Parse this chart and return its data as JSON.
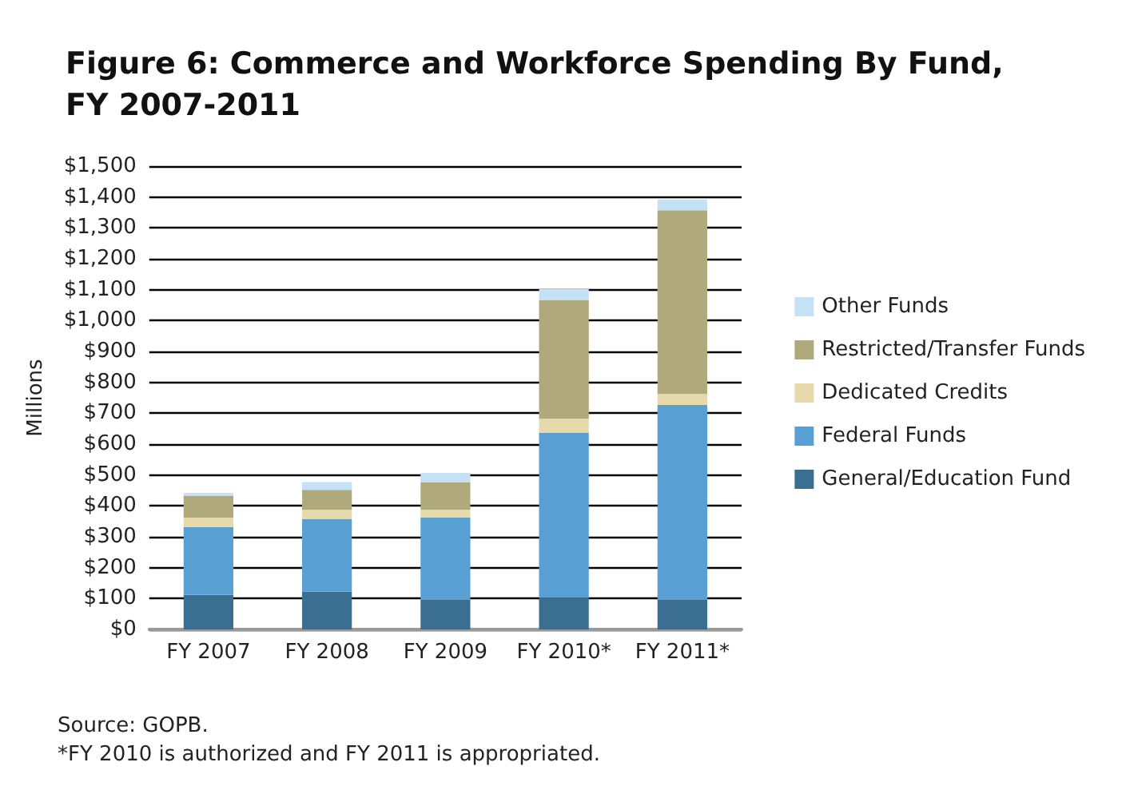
{
  "chart_data": {
    "type": "bar",
    "title": "Figure 6: Commerce and Workforce Spending By Fund,\nFY 2007-2011",
    "ylabel": "Millions",
    "categories": [
      "FY 2007",
      "FY 2008",
      "FY 2009",
      "FY 2010*",
      "FY 2011*"
    ],
    "stacked": true,
    "series": [
      {
        "name": "General/Education Fund",
        "color": "#3a6f91",
        "values": [
          112,
          122,
          97,
          102,
          97
        ]
      },
      {
        "name": "Federal Funds",
        "color": "#58a0d4",
        "values": [
          220,
          235,
          265,
          535,
          630
        ]
      },
      {
        "name": "Dedicated Credits",
        "color": "#e6d9ab",
        "values": [
          30,
          30,
          25,
          45,
          35
        ]
      },
      {
        "name": "Restricted/Transfer Funds",
        "color": "#b0a97c",
        "values": [
          71,
          65,
          90,
          385,
          595
        ]
      },
      {
        "name": "Other Funds",
        "color": "#c5e1f3",
        "values": [
          9,
          25,
          30,
          35,
          35
        ]
      }
    ],
    "ylim": [
      0,
      1500
    ],
    "yticks": [
      {
        "value": 0,
        "label": "$0"
      },
      {
        "value": 100,
        "label": "$100"
      },
      {
        "value": 200,
        "label": "$200"
      },
      {
        "value": 300,
        "label": "$300"
      },
      {
        "value": 400,
        "label": "$400"
      },
      {
        "value": 500,
        "label": "$500"
      },
      {
        "value": 600,
        "label": "$600"
      },
      {
        "value": 700,
        "label": "$700"
      },
      {
        "value": 800,
        "label": "$800"
      },
      {
        "value": 900,
        "label": "$900"
      },
      {
        "value": 1000,
        "label": "$1,000"
      },
      {
        "value": 1100,
        "label": "$1,100"
      },
      {
        "value": 1200,
        "label": "$1,200"
      },
      {
        "value": 1300,
        "label": "$1,300"
      },
      {
        "value": 1400,
        "label": "$1,400"
      },
      {
        "value": 1500,
        "label": "$1,500"
      }
    ],
    "grid": "y",
    "legend": "right",
    "annotations": [
      "Source: GOPB.",
      "*FY 2010 is authorized and FY 2011 is appropriated."
    ]
  }
}
